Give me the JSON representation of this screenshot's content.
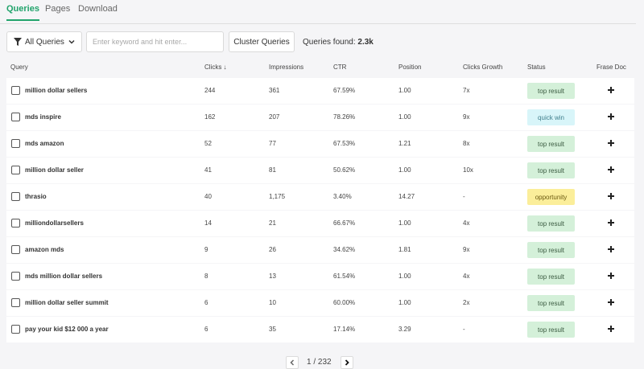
{
  "tabs": [
    {
      "label": "Queries",
      "active": true
    },
    {
      "label": "Pages",
      "active": false
    },
    {
      "label": "Download",
      "active": false
    }
  ],
  "toolbar": {
    "filter_label": "All Queries",
    "search_placeholder": "Enter keyword and hit enter...",
    "search_value": "",
    "cluster_label": "Cluster Queries",
    "found_label": "Queries found:",
    "found_value": "2.3k"
  },
  "columns": {
    "query": "Query",
    "clicks": "Clicks ↓",
    "impressions": "Impressions",
    "ctr": "CTR",
    "position": "Position",
    "growth": "Clicks Growth",
    "status": "Status",
    "frase": "Frase Doc"
  },
  "rows": [
    {
      "query": "million dollar sellers",
      "clicks": "244",
      "impressions": "361",
      "ctr": "67.59%",
      "position": "1.00",
      "growth": "7x",
      "status": "top result",
      "status_type": "top"
    },
    {
      "query": "mds inspire",
      "clicks": "162",
      "impressions": "207",
      "ctr": "78.26%",
      "position": "1.00",
      "growth": "9x",
      "status": "quick win",
      "status_type": "quick"
    },
    {
      "query": "mds amazon",
      "clicks": "52",
      "impressions": "77",
      "ctr": "67.53%",
      "position": "1.21",
      "growth": "8x",
      "status": "top result",
      "status_type": "top"
    },
    {
      "query": "million dollar seller",
      "clicks": "41",
      "impressions": "81",
      "ctr": "50.62%",
      "position": "1.00",
      "growth": "10x",
      "status": "top result",
      "status_type": "top"
    },
    {
      "query": "thrasio",
      "clicks": "40",
      "impressions": "1,175",
      "ctr": "3.40%",
      "position": "14.27",
      "growth": "-",
      "status": "opportunity",
      "status_type": "opp"
    },
    {
      "query": "milliondollarsellers",
      "clicks": "14",
      "impressions": "21",
      "ctr": "66.67%",
      "position": "1.00",
      "growth": "4x",
      "status": "top result",
      "status_type": "top"
    },
    {
      "query": "amazon mds",
      "clicks": "9",
      "impressions": "26",
      "ctr": "34.62%",
      "position": "1.81",
      "growth": "9x",
      "status": "top result",
      "status_type": "top"
    },
    {
      "query": "mds million dollar sellers",
      "clicks": "8",
      "impressions": "13",
      "ctr": "61.54%",
      "position": "1.00",
      "growth": "4x",
      "status": "top result",
      "status_type": "top"
    },
    {
      "query": "million dollar seller summit",
      "clicks": "6",
      "impressions": "10",
      "ctr": "60.00%",
      "position": "1.00",
      "growth": "2x",
      "status": "top result",
      "status_type": "top"
    },
    {
      "query": "pay your kid $12 000 a year",
      "clicks": "6",
      "impressions": "35",
      "ctr": "17.14%",
      "position": "3.29",
      "growth": "-",
      "status": "top result",
      "status_type": "top"
    }
  ],
  "pagination": {
    "current": "1",
    "total": "232",
    "label": "1 / 232"
  },
  "colors": {
    "accent": "#21a36b",
    "top_result_bg": "#d4f0d9",
    "quick_win_bg": "#d8f5f9",
    "opportunity_bg": "#fbee9a"
  }
}
